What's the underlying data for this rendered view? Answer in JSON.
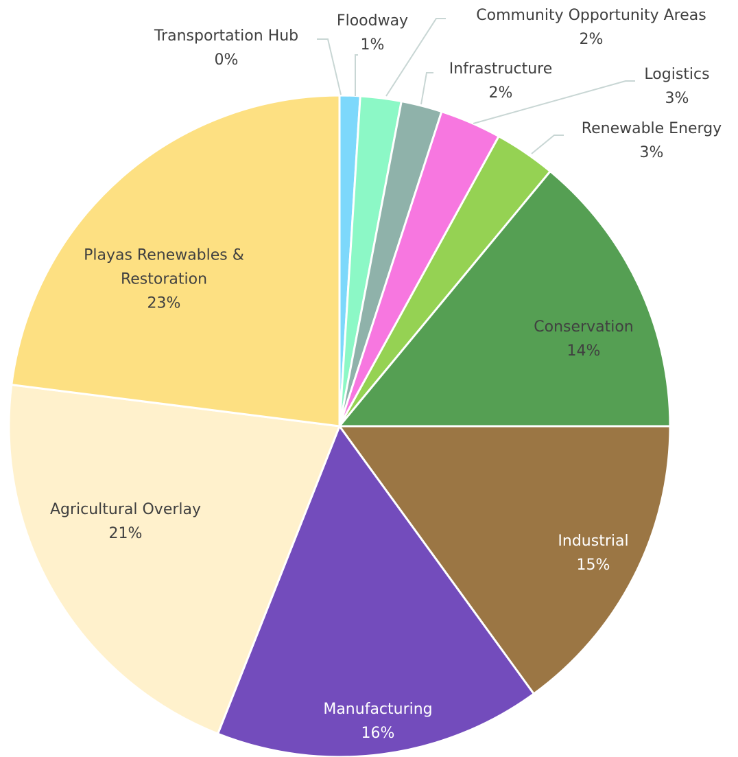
{
  "chart_data": {
    "type": "pie",
    "categories": [
      "Transportation Hub",
      "Floodway",
      "Community Opportunity Areas",
      "Infrastructure",
      "Logistics",
      "Renewable Energy",
      "Conservation",
      "Industrial",
      "Manufacturing",
      "Agricultural Overlay",
      "Playas Renewables & Restoration"
    ],
    "values": [
      0,
      1,
      2,
      2,
      3,
      3,
      14,
      15,
      16,
      21,
      23
    ],
    "value_labels": [
      "0%",
      "1%",
      "2%",
      "2%",
      "3%",
      "3%",
      "14%",
      "15%",
      "16%",
      "21%",
      "23%"
    ],
    "colors": [
      "#d9d9d9",
      "#7dd8fb",
      "#8cf8c6",
      "#8fb2aa",
      "#f777e0",
      "#95d253",
      "#559f53",
      "#9b7644",
      "#734cbc",
      "#fff1cc",
      "#fde082"
    ]
  }
}
